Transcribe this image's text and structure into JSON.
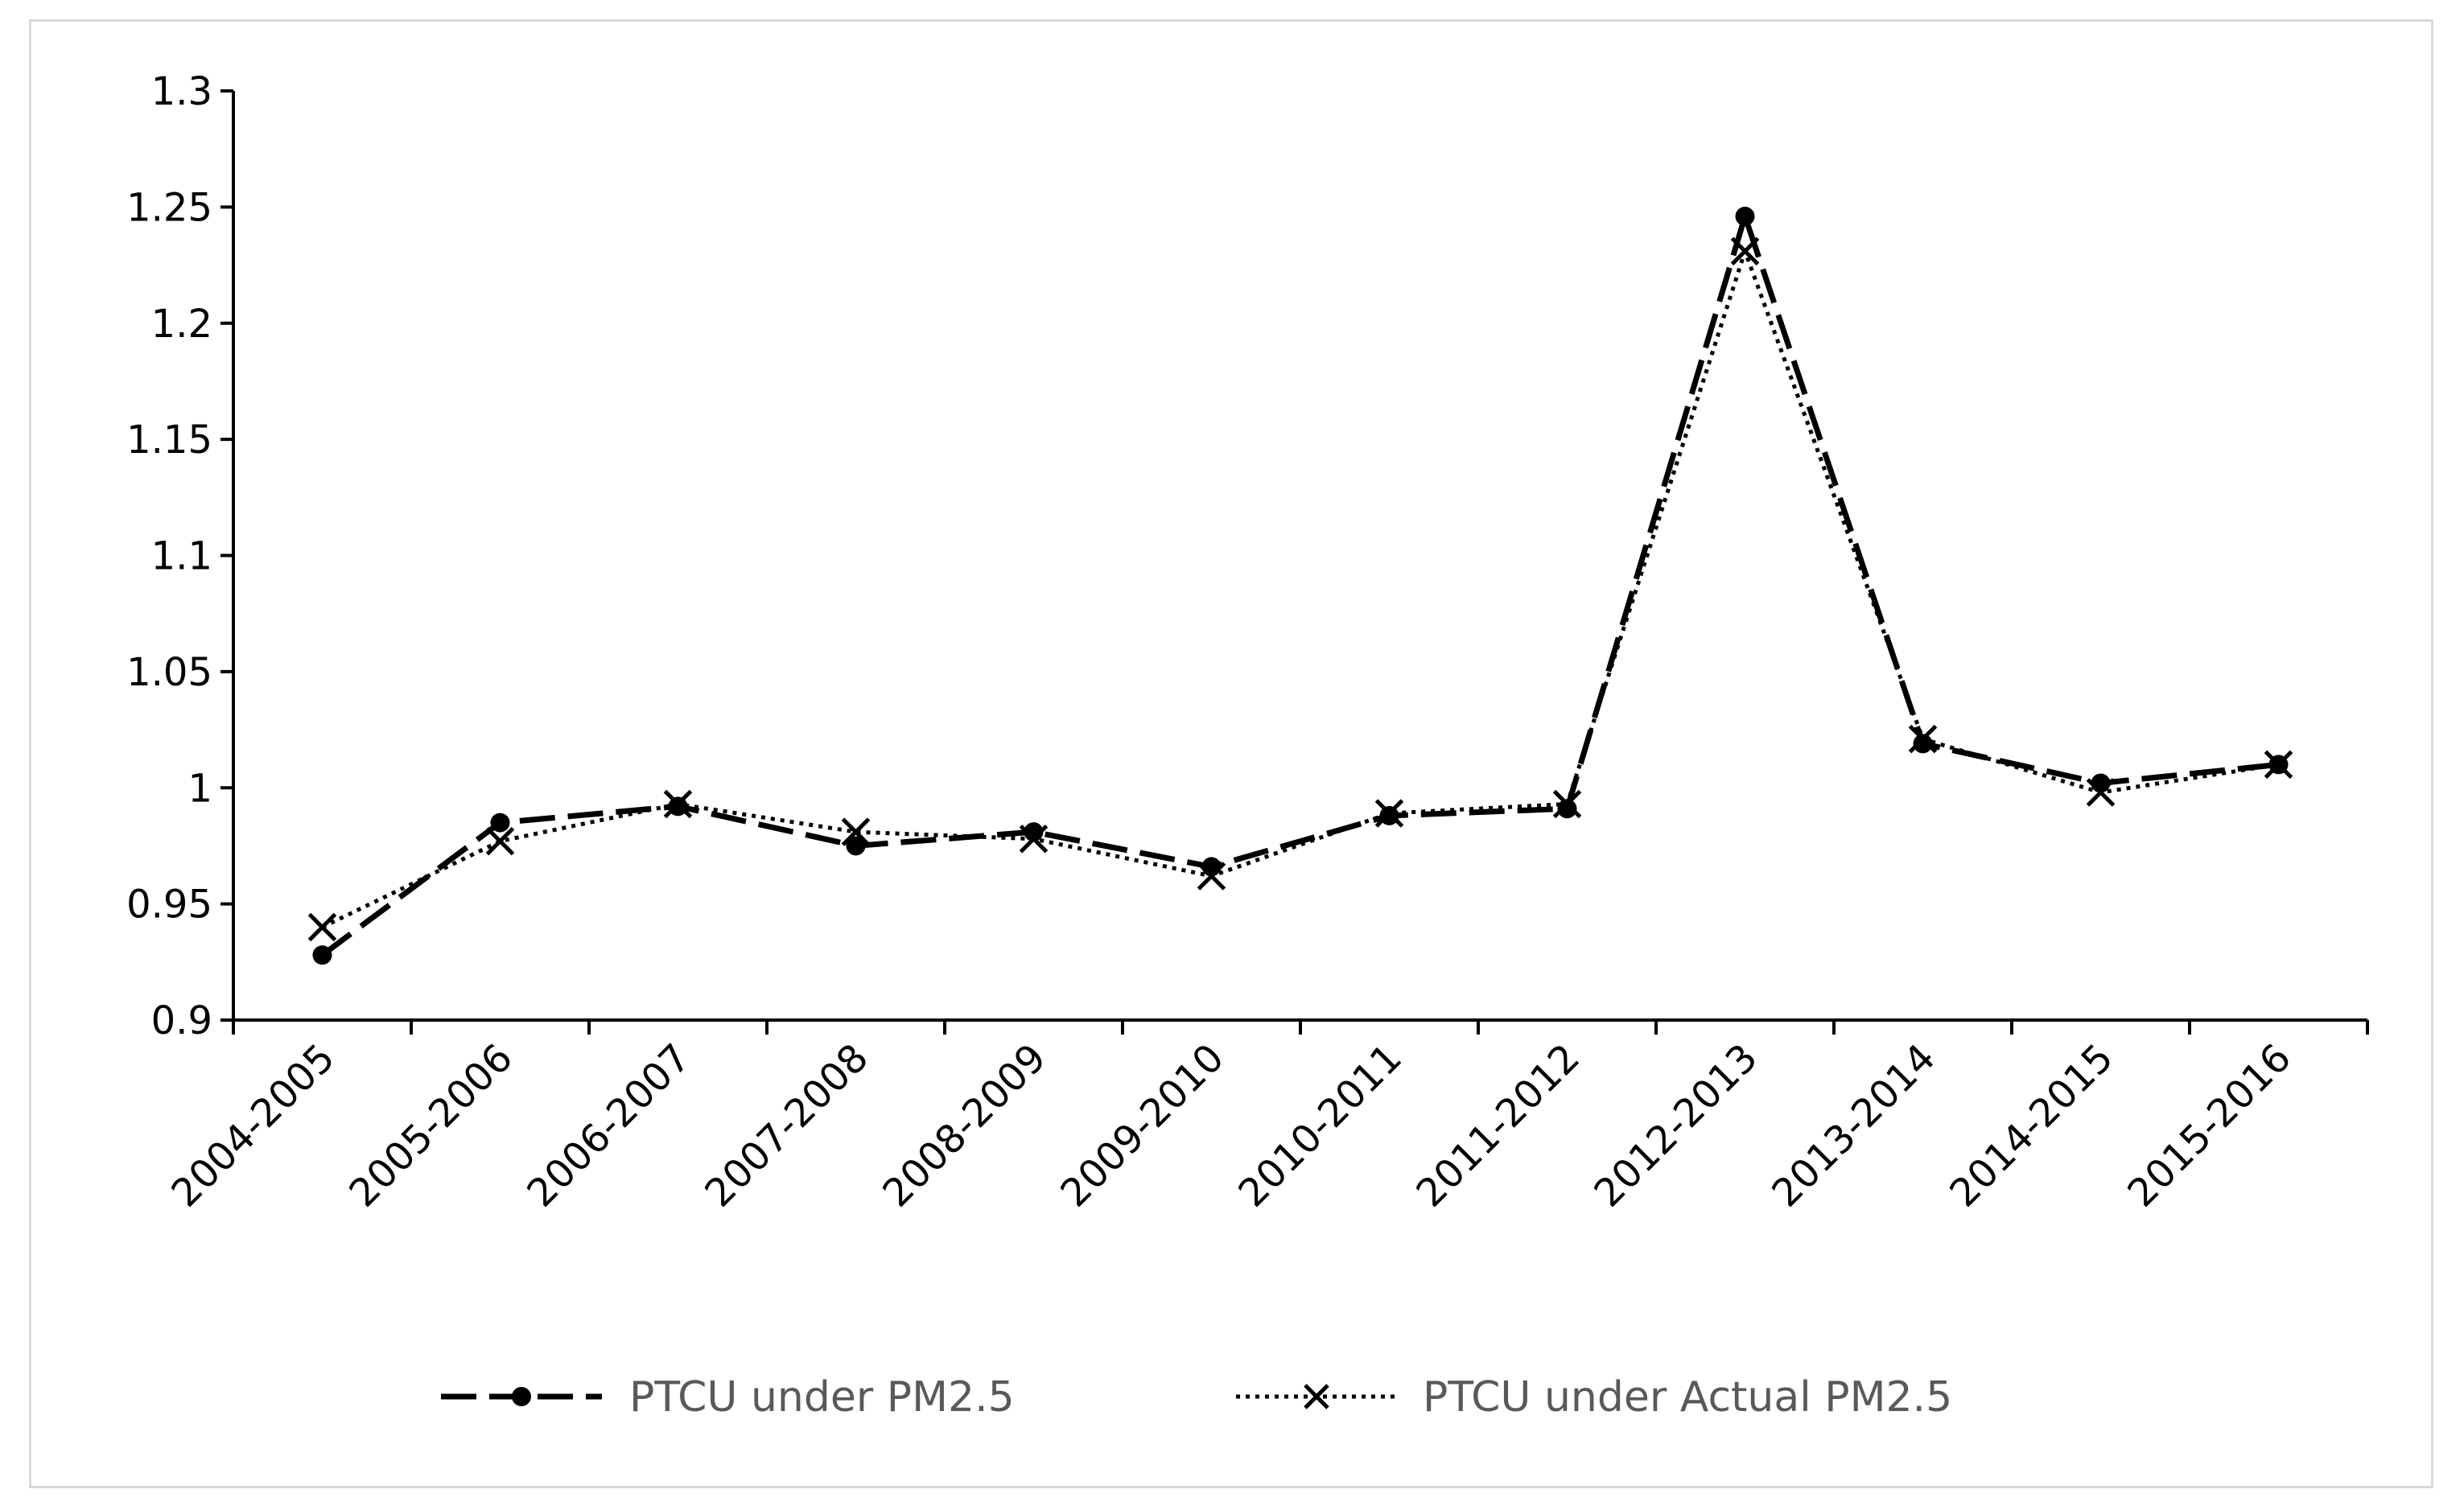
{
  "chart_data": {
    "type": "line",
    "categories": [
      "2004-2005",
      "2005-2006",
      "2006-2007",
      "2007-2008",
      "2008-2009",
      "2009-2010",
      "2010-2011",
      "2011-2012",
      "2012-2013",
      "2013-2014",
      "2014-2015",
      "2015-2016"
    ],
    "series": [
      {
        "name": "PTCU under PM2.5",
        "style": "long-dash",
        "marker": "circle",
        "values": [
          0.928,
          0.985,
          0.992,
          0.975,
          0.981,
          0.966,
          0.988,
          0.991,
          1.246,
          1.019,
          1.002,
          1.01
        ]
      },
      {
        "name": "PTCU under Actual PM2.5",
        "style": "dotted",
        "marker": "x",
        "values": [
          0.94,
          0.977,
          0.993,
          0.981,
          0.978,
          0.962,
          0.989,
          0.993,
          1.231,
          1.021,
          0.998,
          1.01
        ]
      }
    ],
    "yticks": [
      "0.9",
      "0.95",
      "1",
      "1.05",
      "1.1",
      "1.15",
      "1.2",
      "1.25",
      "1.3"
    ],
    "ylim": [
      0.9,
      1.3
    ],
    "grid": false,
    "legend_position": "bottom",
    "colors": {
      "line": "#000000",
      "legend_text": "#595959",
      "frame": "#d9d9d9"
    }
  }
}
